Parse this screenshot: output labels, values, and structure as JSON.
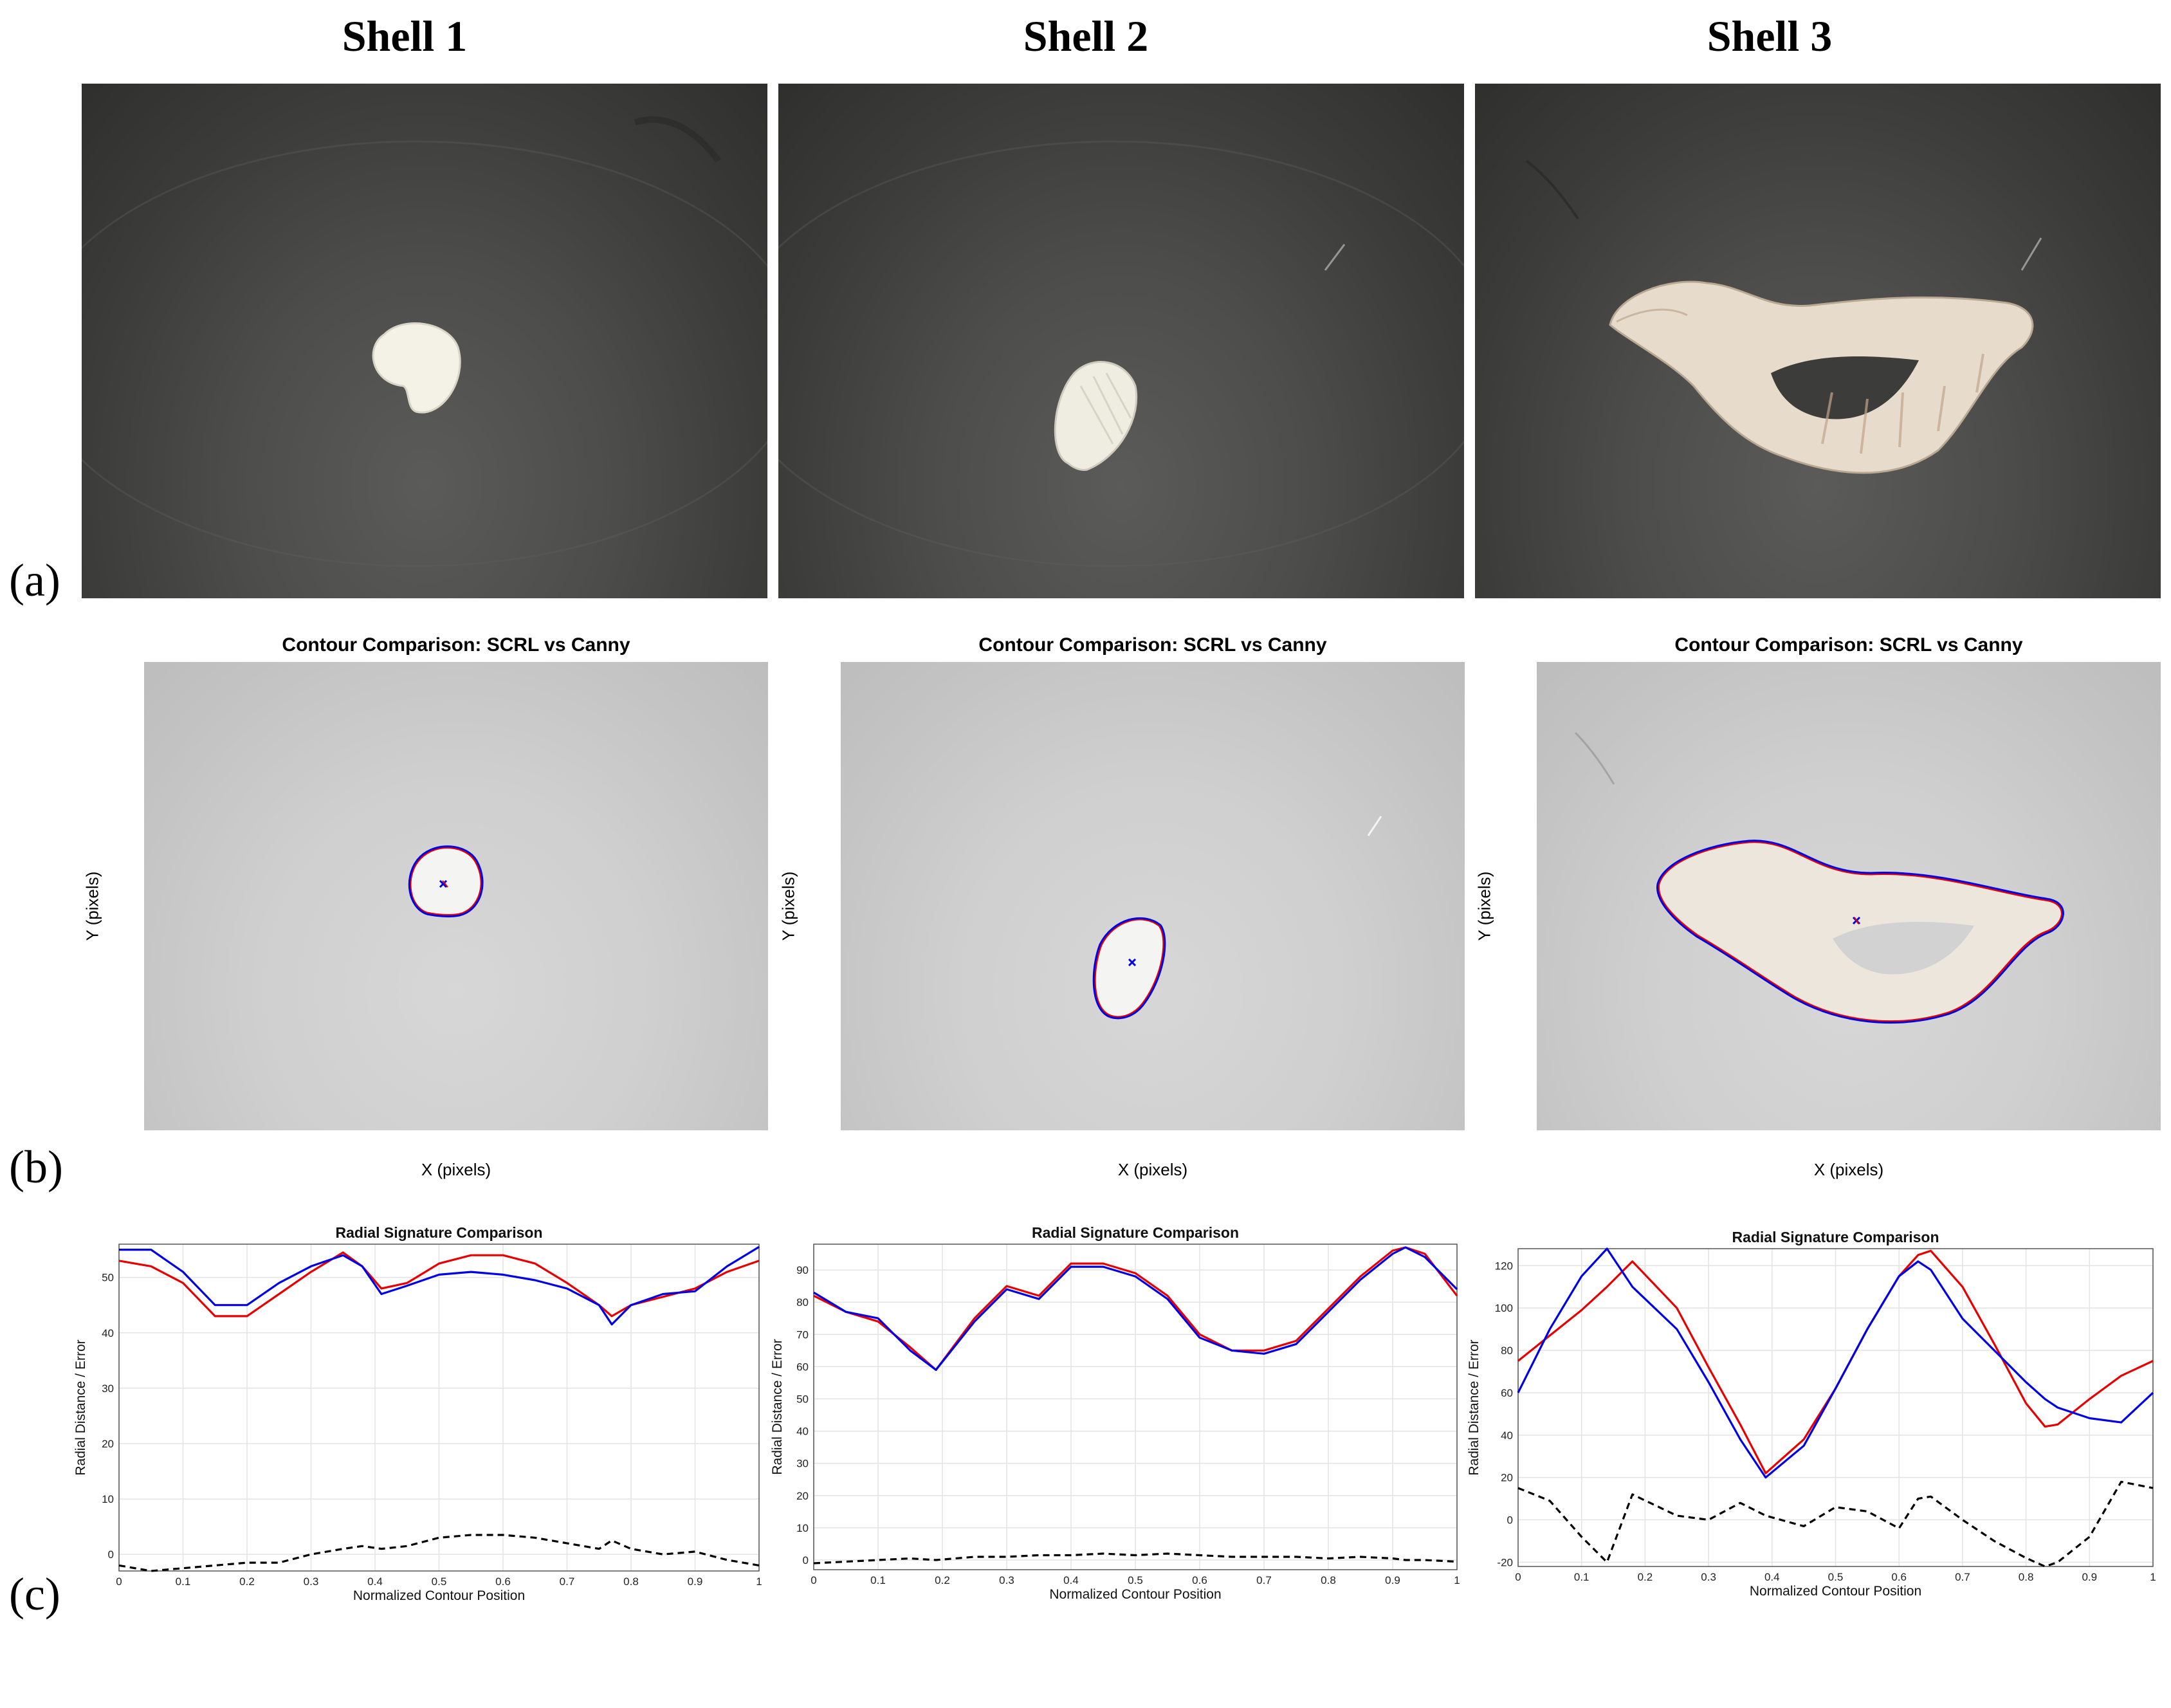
{
  "headers": [
    "Shell 1",
    "Shell 2",
    "Shell 3"
  ],
  "panel_labels": {
    "a": "(a)",
    "b": "(b)",
    "c": "(c)"
  },
  "contour": {
    "title": "Contour Comparison: SCRL vs Canny",
    "xlabel": "X (pixels)",
    "ylabel": "Y (pixels)"
  },
  "colors": {
    "scrl": "#e60000",
    "canny": "#0000e6",
    "error": "#000000"
  },
  "chart_data": [
    {
      "type": "line",
      "title": "Radial Signature Comparison",
      "xlabel": "Normalized Contour Position",
      "ylabel": "Radial Distance / Error",
      "xlim": [
        0,
        1
      ],
      "ylim": [
        -3,
        56
      ],
      "xticks": [
        0,
        0.1,
        0.2,
        0.3,
        0.4,
        0.5,
        0.6,
        0.7,
        0.8,
        0.9,
        1
      ],
      "yticks": [
        0,
        10,
        20,
        30,
        40,
        50
      ],
      "grid": true,
      "x": [
        0,
        0.05,
        0.1,
        0.15,
        0.2,
        0.25,
        0.3,
        0.35,
        0.38,
        0.41,
        0.45,
        0.5,
        0.55,
        0.6,
        0.65,
        0.7,
        0.75,
        0.77,
        0.8,
        0.85,
        0.9,
        0.95,
        1
      ],
      "series": [
        {
          "color": "red",
          "style": "solid",
          "values": [
            53,
            52,
            49,
            43,
            43,
            47,
            51,
            54.5,
            52,
            48,
            49,
            52.5,
            54,
            54,
            52.5,
            49,
            45,
            43,
            45,
            46.5,
            48,
            51,
            53
          ]
        },
        {
          "color": "blue",
          "style": "solid",
          "values": [
            55,
            55,
            51,
            45,
            45,
            49,
            52,
            54,
            52,
            47,
            48.5,
            50.5,
            51,
            50.5,
            49.5,
            48,
            45,
            41.5,
            45,
            47,
            47.5,
            52,
            55.5
          ]
        },
        {
          "color": "black",
          "style": "dashed",
          "values": [
            -2,
            -3,
            -2.5,
            -2,
            -1.5,
            -1.5,
            0,
            1,
            1.5,
            1,
            1.5,
            3,
            3.5,
            3.5,
            3,
            2,
            1,
            2.5,
            1,
            0,
            0.5,
            -1,
            -2
          ]
        }
      ]
    },
    {
      "type": "line",
      "title": "Radial Signature Comparison",
      "xlabel": "Normalized Contour Position",
      "ylabel": "Radial Distance / Error",
      "xlim": [
        0,
        1
      ],
      "ylim": [
        -3,
        98
      ],
      "xticks": [
        0,
        0.1,
        0.2,
        0.3,
        0.4,
        0.5,
        0.6,
        0.7,
        0.8,
        0.9,
        1
      ],
      "yticks": [
        0,
        10,
        20,
        30,
        40,
        50,
        60,
        70,
        80,
        90
      ],
      "grid": true,
      "x": [
        0,
        0.05,
        0.1,
        0.15,
        0.19,
        0.25,
        0.3,
        0.35,
        0.4,
        0.45,
        0.5,
        0.55,
        0.6,
        0.65,
        0.7,
        0.75,
        0.8,
        0.85,
        0.9,
        0.92,
        0.95,
        1
      ],
      "series": [
        {
          "color": "red",
          "style": "solid",
          "values": [
            82,
            77,
            74,
            66,
            59,
            75,
            85,
            82,
            92,
            92,
            89,
            82,
            70,
            65,
            65,
            68,
            78,
            88,
            96,
            97,
            95,
            82
          ]
        },
        {
          "color": "blue",
          "style": "solid",
          "values": [
            83,
            77,
            75,
            65,
            59,
            74,
            84,
            81,
            91,
            91,
            88,
            81,
            69,
            65,
            64,
            67,
            77,
            87,
            95,
            97,
            94,
            84
          ]
        },
        {
          "color": "black",
          "style": "dashed",
          "values": [
            -1,
            -0.5,
            0,
            0.5,
            0,
            1,
            1,
            1.5,
            1.5,
            2,
            1.5,
            2,
            1.5,
            1,
            1,
            1,
            0.5,
            1,
            0.5,
            0,
            0,
            -0.5
          ]
        }
      ]
    },
    {
      "type": "line",
      "title": "Radial Signature Comparison",
      "xlabel": "Normalized Contour Position",
      "ylabel": "Radial Distance / Error",
      "xlim": [
        0,
        1
      ],
      "ylim": [
        -22,
        128
      ],
      "xticks": [
        0,
        0.1,
        0.2,
        0.3,
        0.4,
        0.5,
        0.6,
        0.7,
        0.8,
        0.9,
        1
      ],
      "yticks": [
        -20,
        0,
        20,
        40,
        60,
        80,
        100,
        120
      ],
      "grid": true,
      "x": [
        0,
        0.05,
        0.1,
        0.14,
        0.18,
        0.25,
        0.3,
        0.35,
        0.39,
        0.45,
        0.5,
        0.55,
        0.6,
        0.63,
        0.65,
        0.7,
        0.75,
        0.8,
        0.83,
        0.85,
        0.9,
        0.95,
        1
      ],
      "series": [
        {
          "color": "red",
          "style": "solid",
          "values": [
            75,
            87,
            99,
            110,
            122,
            100,
            72,
            45,
            22,
            38,
            62,
            90,
            115,
            125,
            127,
            110,
            83,
            55,
            44,
            45,
            57,
            68,
            75
          ]
        },
        {
          "color": "blue",
          "style": "solid",
          "values": [
            60,
            90,
            115,
            128,
            110,
            90,
            65,
            38,
            20,
            35,
            62,
            90,
            115,
            122,
            118,
            95,
            80,
            65,
            57,
            53,
            48,
            46,
            60
          ]
        },
        {
          "color": "black",
          "style": "dashed",
          "values": [
            15,
            9,
            -8,
            -20,
            12,
            2,
            0,
            8,
            2,
            -3,
            6,
            4,
            -4,
            10,
            11,
            0,
            -10,
            -18,
            -22,
            -20,
            -8,
            18,
            15
          ]
        }
      ]
    }
  ]
}
